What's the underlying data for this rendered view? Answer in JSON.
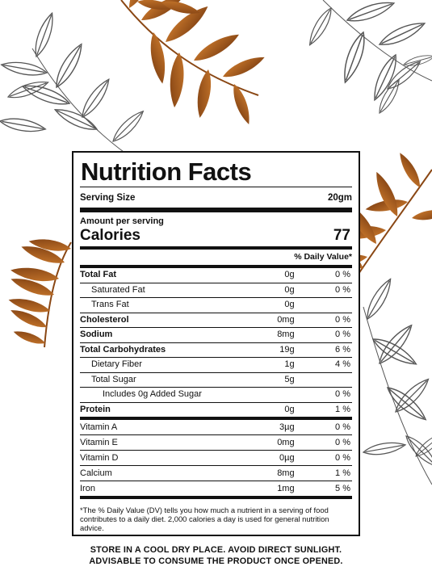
{
  "panel": {
    "title": "Nutrition Facts",
    "serving_label": "Serving Size",
    "serving_value": "20gm",
    "amount_label": "Amount per serving",
    "calories_label": "Calories",
    "calories_value": "77",
    "dv_header": "% Daily Value*"
  },
  "nutrients": [
    {
      "name": "Total Fat",
      "amount": "0g",
      "dv": "0 %"
    },
    {
      "name": "Saturated Fat",
      "amount": "0g",
      "dv": "0 %"
    },
    {
      "name": "Trans Fat",
      "amount": "0g",
      "dv": ""
    },
    {
      "name": "Cholesterol",
      "amount": "0mg",
      "dv": "0 %"
    },
    {
      "name": "Sodium",
      "amount": "8mg",
      "dv": "0 %"
    },
    {
      "name": "Total Carbohydrates",
      "amount": "19g",
      "dv": "6 %"
    },
    {
      "name": "Dietary Fiber",
      "amount": "1g",
      "dv": "4 %"
    },
    {
      "name": "Total Sugar",
      "amount": "5g",
      "dv": ""
    },
    {
      "name": "Includes 0g Added Sugar",
      "amount": "",
      "dv": "0 %"
    },
    {
      "name": "Protein",
      "amount": "0g",
      "dv": "1 %"
    }
  ],
  "vitamins": [
    {
      "name": "Vitamin A",
      "amount": "3µg",
      "dv": "0 %"
    },
    {
      "name": "Vitamin E",
      "amount": "0mg",
      "dv": "0 %"
    },
    {
      "name": "Vitamin D",
      "amount": "0µg",
      "dv": "0 %"
    },
    {
      "name": "Calcium",
      "amount": "8mg",
      "dv": "1 %"
    },
    {
      "name": "Iron",
      "amount": "1mg",
      "dv": "5 %"
    }
  ],
  "footnote": "*The % Daily Value (DV) tells you how much a nutrient in a serving of food contributes to a daily diet. 2,000 calories a day is used for general nutrition advice.",
  "storage": {
    "line1": "STORE IN A COOL DRY PLACE. AVOID DIRECT SUNLIGHT.",
    "line2": "ADVISABLE TO CONSUME THE PRODUCT ONCE OPENED."
  },
  "colors": {
    "accent_leaf": "#b8641f",
    "accent_leaf_dark": "#8a4714",
    "ink": "#111111",
    "outline_leaf": "#555555"
  },
  "icons": [
    "orange-leaf-branch-icon",
    "outline-leaf-branch-icon"
  ]
}
